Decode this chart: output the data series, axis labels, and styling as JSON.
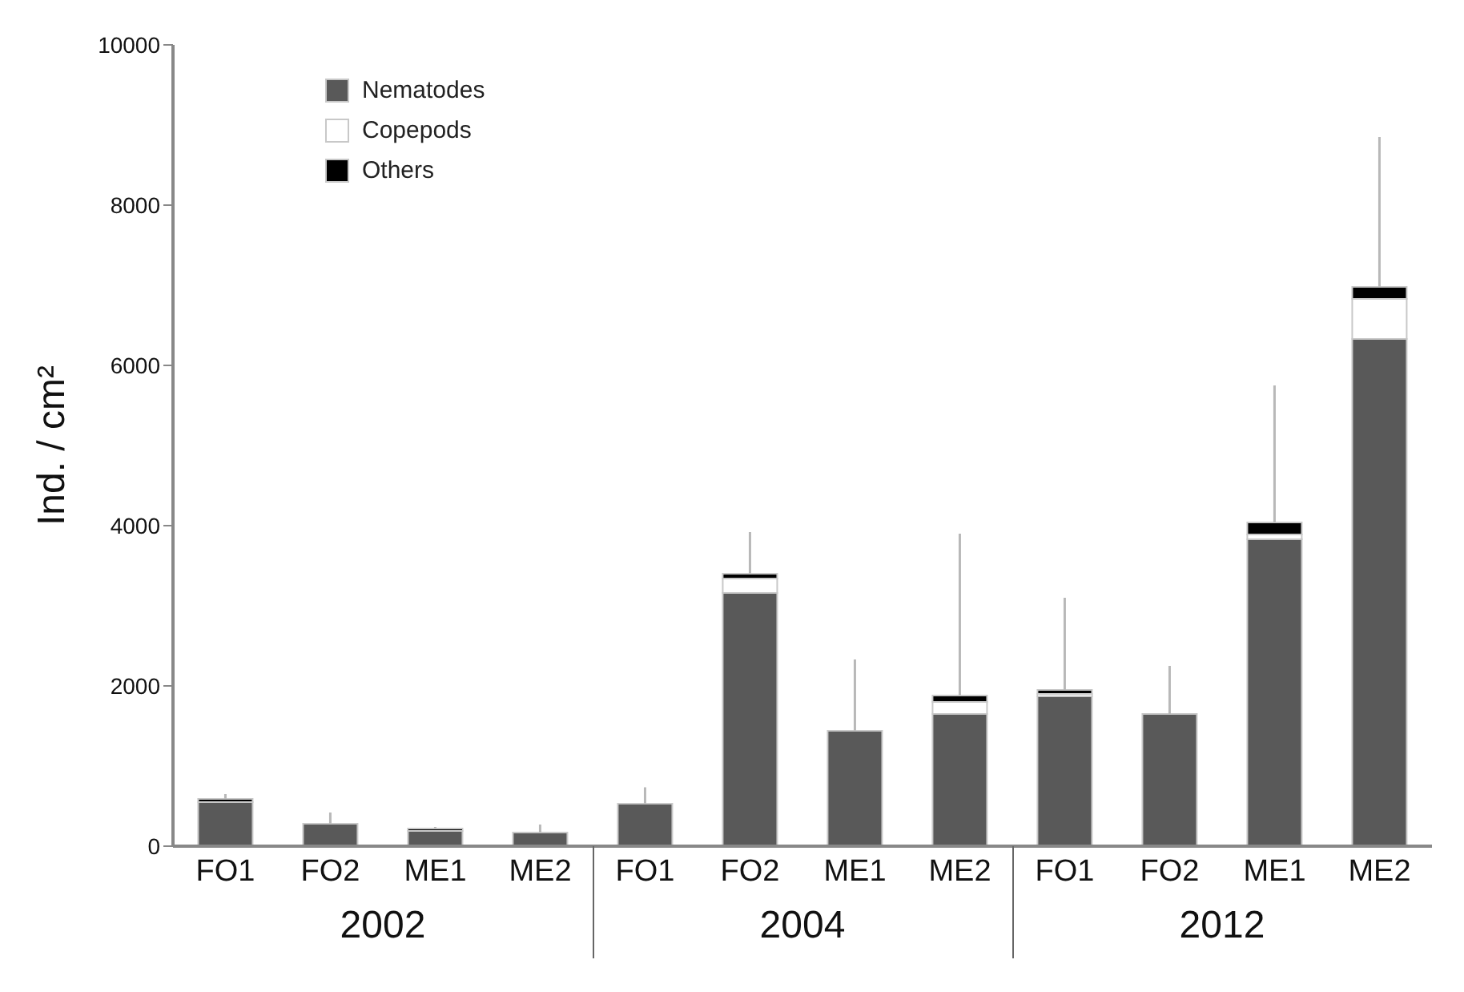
{
  "chart_data": {
    "type": "bar",
    "stacked": true,
    "ylabel": "Ind. / cm²",
    "categories": [
      "FO1",
      "FO2",
      "ME1",
      "ME2",
      "FO1",
      "FO2",
      "ME1",
      "ME2",
      "FO1",
      "FO2",
      "ME1",
      "ME2"
    ],
    "series": [
      {
        "name": "Nematodes",
        "color": "#595959",
        "values": [
          550,
          280,
          190,
          170,
          530,
          3160,
          1440,
          1650,
          1870,
          1650,
          3830,
          6330
        ]
      },
      {
        "name": "Copepods",
        "color": "#ffffff",
        "values": [
          0,
          0,
          0,
          0,
          0,
          180,
          0,
          150,
          30,
          0,
          60,
          500
        ]
      },
      {
        "name": "Others",
        "color": "#000000",
        "values": [
          40,
          0,
          30,
          0,
          0,
          60,
          0,
          80,
          50,
          0,
          150,
          150
        ],
        "errors": [
          [
            590,
            650
          ],
          [
            280,
            420
          ],
          [
            220,
            240
          ],
          [
            170,
            270
          ],
          [
            530,
            735
          ],
          [
            3400,
            3920
          ],
          [
            1440,
            2330
          ],
          [
            1880,
            3900
          ],
          [
            1950,
            3100
          ],
          [
            1650,
            2250
          ],
          [
            4040,
            5750
          ],
          [
            6980,
            8850
          ]
        ]
      }
    ],
    "annotations": [
      "2002",
      "2004",
      "2012"
    ],
    "ylim": [
      0,
      10000
    ],
    "yticks": [
      0,
      2000,
      4000,
      6000,
      8000,
      10000
    ],
    "legend": "top left",
    "grid": false
  }
}
